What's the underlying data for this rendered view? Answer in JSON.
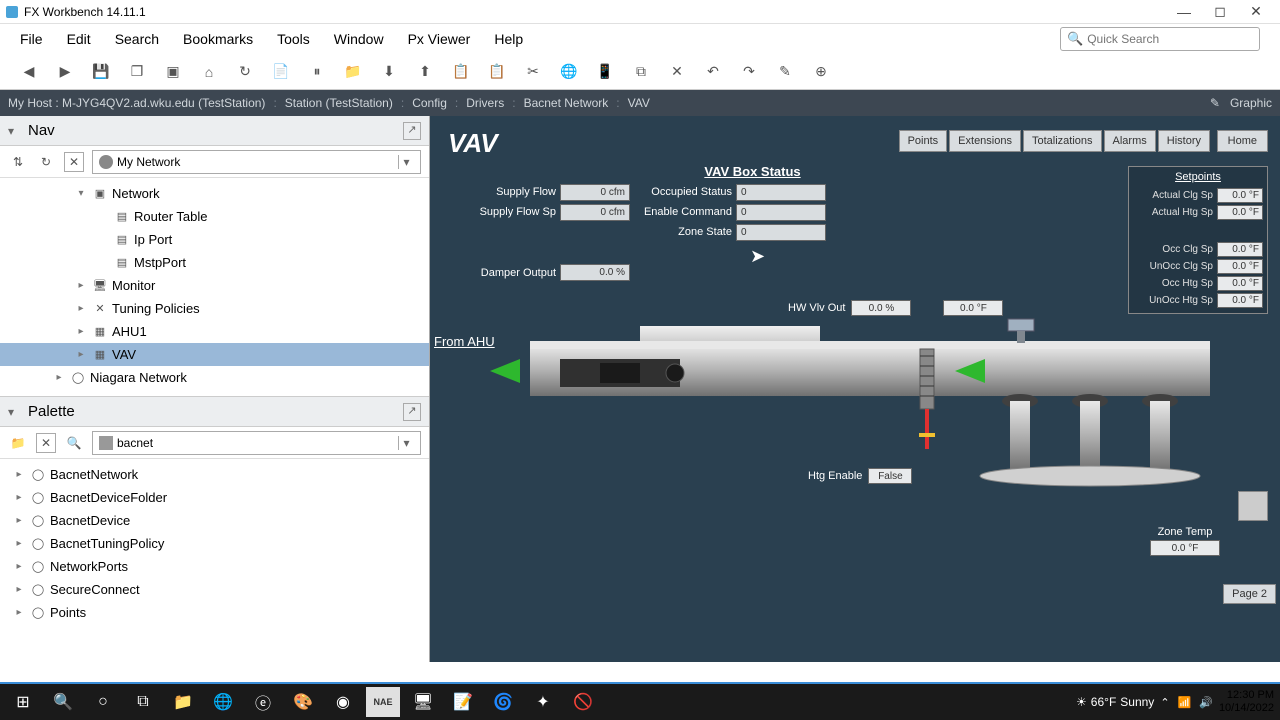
{
  "window": {
    "title": "FX Workbench 14.11.1"
  },
  "menu": [
    "File",
    "Edit",
    "Search",
    "Bookmarks",
    "Tools",
    "Window",
    "Px Viewer",
    "Help"
  ],
  "search_placeholder": "Quick Search",
  "breadcrumb": {
    "items": [
      "My Host : M-JYG4QV2.ad.wku.edu (TestStation)",
      "Station (TestStation)",
      "Config",
      "Drivers",
      "Bacnet Network",
      "VAV"
    ],
    "right": "Graphic"
  },
  "nav": {
    "title": "Nav",
    "combo": "My Network",
    "tree": [
      {
        "label": "Network",
        "indent": 3,
        "expanded": true,
        "icon": "folder"
      },
      {
        "label": "Router Table",
        "indent": 4,
        "icon": "doc"
      },
      {
        "label": "Ip Port",
        "indent": 4,
        "icon": "doc"
      },
      {
        "label": "MstpPort",
        "indent": 4,
        "icon": "doc"
      },
      {
        "label": "Monitor",
        "indent": 3,
        "icon": "monitor"
      },
      {
        "label": "Tuning Policies",
        "indent": 3,
        "icon": "x"
      },
      {
        "label": "AHU1",
        "indent": 3,
        "icon": "device"
      },
      {
        "label": "VAV",
        "indent": 3,
        "icon": "device",
        "selected": true
      },
      {
        "label": "Niagara Network",
        "indent": 2,
        "icon": "circle"
      }
    ]
  },
  "palette": {
    "title": "Palette",
    "combo": "bacnet",
    "items": [
      "BacnetNetwork",
      "BacnetDeviceFolder",
      "BacnetDevice",
      "BacnetTuningPolicy",
      "NetworkPorts",
      "SecureConnect",
      "Points"
    ]
  },
  "viewer": {
    "title": "VAV",
    "tabs": [
      "Points",
      "Extensions",
      "Totalizations",
      "Alarms",
      "History"
    ],
    "home": "Home",
    "status_title": "VAV Box Status",
    "status": [
      {
        "l1": "Supply Flow",
        "v1": "0 cfm",
        "l2": "Occupied Status",
        "v2": "0"
      },
      {
        "l1": "Supply Flow Sp",
        "v1": "0 cfm",
        "l2": "Enable Command",
        "v2": "0"
      },
      {
        "l1": "",
        "v1": "",
        "l2": "Zone State",
        "v2": "0"
      }
    ],
    "damper_label": "Damper Output",
    "damper_value": "0.0 %",
    "from_ahu": "From AHU",
    "hwvlv_label": "HW Vlv Out",
    "hwvlv_pct": "0.0 %",
    "hwvlv_temp": "0.0 °F",
    "htg_label": "Htg Enable",
    "htg_value": "False",
    "setpoints_title": "Setpoints",
    "setpoints": [
      {
        "label": "Actual Clg Sp",
        "value": "0.0 °F"
      },
      {
        "label": "Actual Htg Sp",
        "value": "0.0 °F"
      }
    ],
    "setpoints2": [
      {
        "label": "Occ Clg Sp",
        "value": "0.0 °F"
      },
      {
        "label": "UnOcc Clg Sp",
        "value": "0.0 °F"
      },
      {
        "label": "Occ Htg Sp",
        "value": "0.0 °F"
      },
      {
        "label": "UnOcc Htg Sp",
        "value": "0.0 °F"
      }
    ],
    "zone_temp_label": "Zone Temp",
    "zone_temp_value": "0.0 °F",
    "page2": "Page 2"
  },
  "taskbar": {
    "weather_temp": "66°F",
    "weather_cond": "Sunny",
    "time": "12:30 PM",
    "date": "10/14/2022"
  },
  "colors": {
    "viewer_bg": "#2a4050",
    "breadcrumb_bg": "#3d4752",
    "selection": "#99b8d8",
    "duct_light": "#d8d8d8",
    "duct_mid": "#a8a8a8",
    "duct_dark": "#707070",
    "arrow_green": "#2eb82e"
  }
}
